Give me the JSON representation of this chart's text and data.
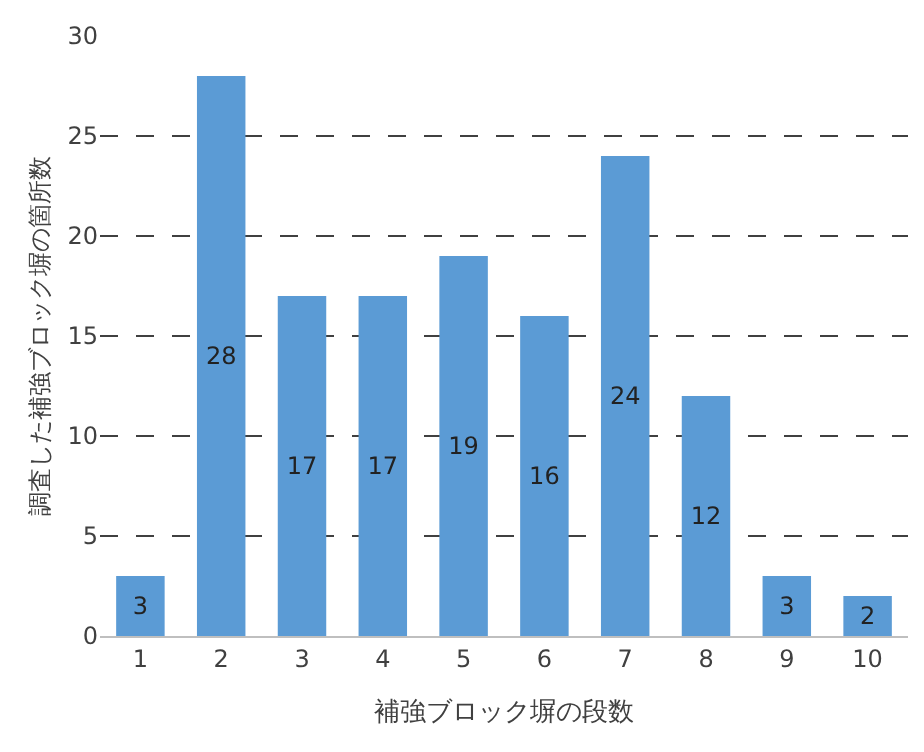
{
  "chart_data": {
    "type": "bar",
    "xlabel": "補強ブロック塀の段数",
    "ylabel": "調査した補強ブロック塀の箇所数",
    "categories": [
      "1",
      "2",
      "3",
      "4",
      "5",
      "6",
      "7",
      "8",
      "9",
      "10"
    ],
    "values": [
      3,
      28,
      17,
      17,
      19,
      16,
      24,
      12,
      3,
      2
    ],
    "color": "#5b9bd5",
    "ylim": [
      0,
      30
    ],
    "yticks": [
      0,
      5,
      10,
      15,
      20,
      25,
      30
    ],
    "grid": "y",
    "data_labels": true
  }
}
